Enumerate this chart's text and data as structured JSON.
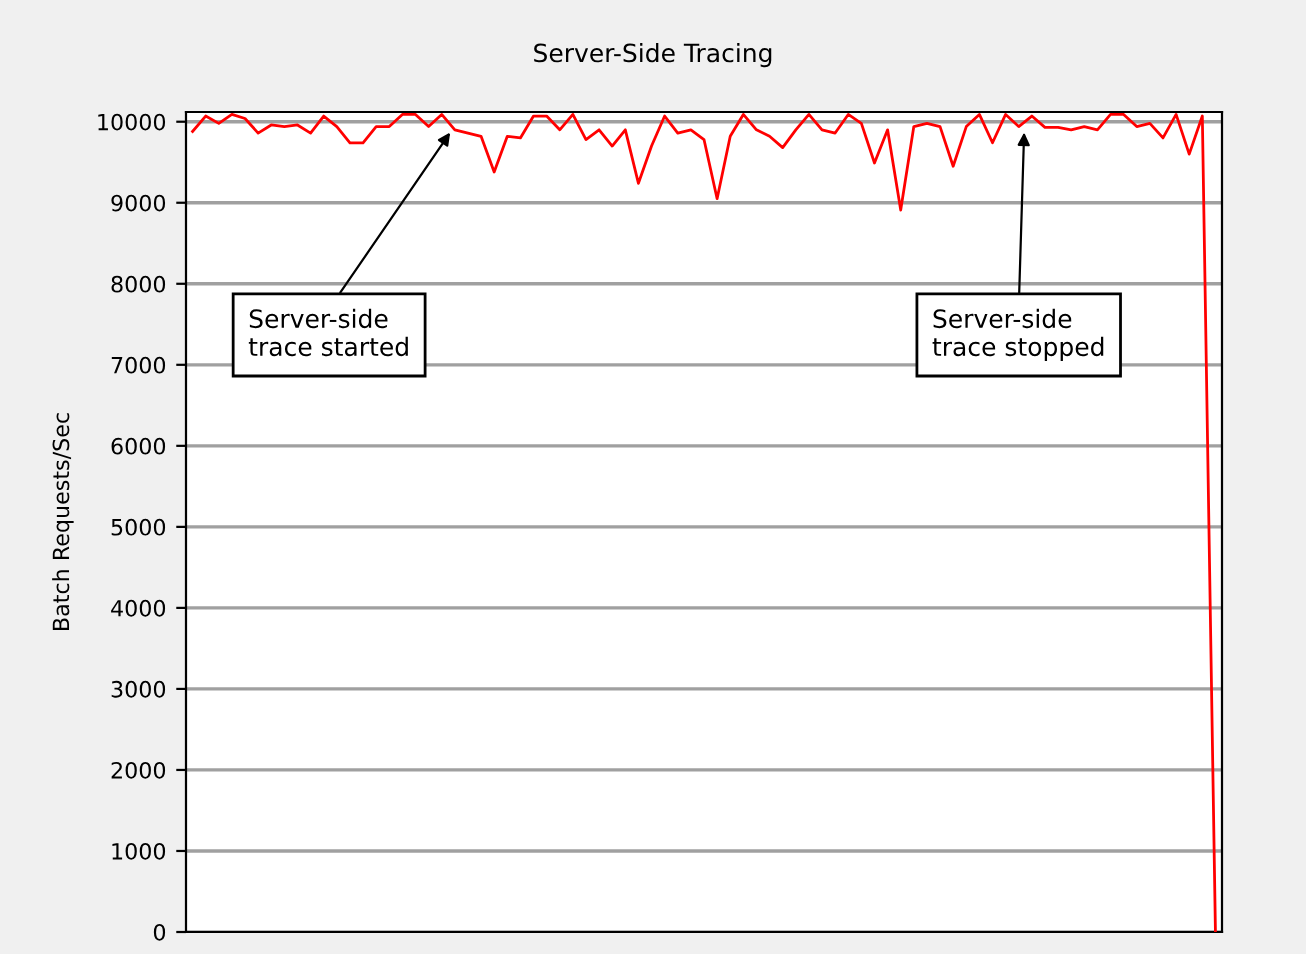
{
  "chart_data": {
    "type": "line",
    "title": "Server-Side Tracing",
    "ylabel": "Batch Requests/Sec",
    "categories": [
      null,
      null,
      null,
      null,
      null,
      null,
      null,
      null,
      null,
      null,
      null,
      null,
      null,
      null,
      null,
      null,
      null,
      null,
      null,
      null,
      null,
      null,
      null,
      null,
      null,
      null,
      null,
      null,
      null,
      null,
      null,
      null,
      null,
      null,
      null,
      null,
      null,
      null,
      null,
      null,
      null,
      null,
      null,
      null,
      null,
      null,
      null,
      null,
      null,
      null,
      null,
      null,
      null,
      null,
      null,
      null,
      null,
      null,
      null,
      null,
      null,
      null,
      null,
      null,
      null,
      null,
      null,
      null,
      null,
      null,
      null,
      null,
      null,
      null,
      null,
      null,
      null,
      null,
      null
    ],
    "ylim": [
      0,
      10120
    ],
    "yticks": [
      0,
      1000,
      2000,
      3000,
      4000,
      5000,
      6000,
      7000,
      8000,
      9000,
      10000
    ],
    "grid": "y",
    "marker": "none",
    "line_style": "solid",
    "annotations": [
      "Server-side\ntrace started",
      "Server-side\ntrace stopped"
    ],
    "series": [
      {
        "color": "#ff0000",
        "values": [
          9880,
          10070,
          9980,
          10090,
          10040,
          9860,
          9960,
          9940,
          9960,
          9860,
          10070,
          9940,
          9740,
          9740,
          9940,
          9940,
          10090,
          10090,
          9940,
          10090,
          9900,
          9860,
          9820,
          9380,
          9820,
          9800,
          10070,
          10070,
          9900,
          10090,
          9780,
          9900,
          9700,
          9900,
          9240,
          9700,
          10070,
          9860,
          9900,
          9780,
          9050,
          9820,
          10090,
          9900,
          9820,
          9680,
          9900,
          10090,
          9900,
          9860,
          10090,
          9980,
          9490,
          9900,
          8910,
          9940,
          9980,
          9940,
          9450,
          9940,
          10090,
          9740,
          10090,
          9940,
          10070,
          9930,
          9930,
          9900,
          9940,
          9900,
          10090,
          10090,
          9940,
          9980,
          9800,
          10090,
          9600,
          10070,
          0
        ]
      }
    ]
  }
}
